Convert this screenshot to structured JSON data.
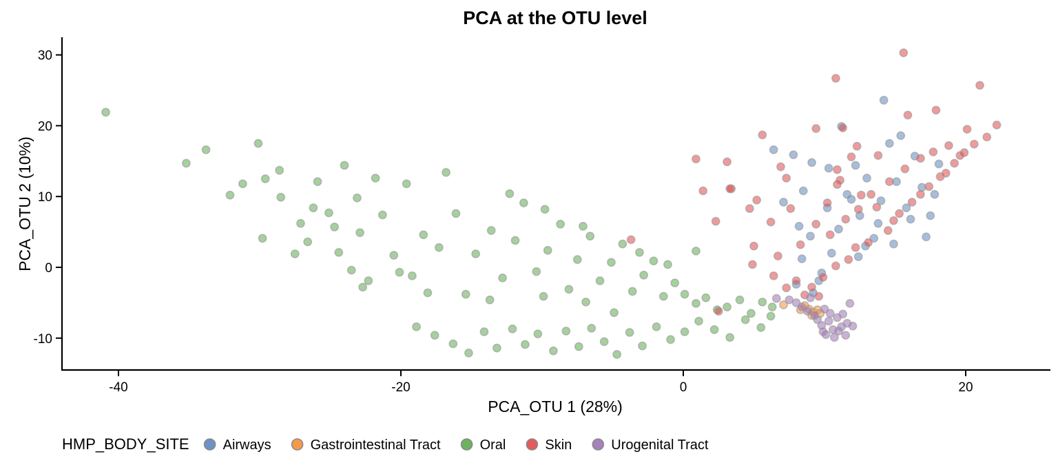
{
  "chart_data": {
    "type": "scatter",
    "title": "PCA at the OTU level",
    "xlabel": "PCA_OTU 1 (28%)",
    "ylabel": "PCA_OTU 2 (10%)",
    "xlim": [
      -44,
      26
    ],
    "ylim": [
      -14.5,
      32.5
    ],
    "xticks": [
      -40,
      -20,
      0,
      20
    ],
    "yticks": [
      -10,
      0,
      10,
      20,
      30
    ],
    "xtick_labels": [
      "-40",
      "-20",
      "0",
      "20"
    ],
    "ytick_labels": [
      "-10",
      "0",
      "10",
      "20",
      "30"
    ],
    "grid": false,
    "legend_position": "bottom",
    "legend_title": "HMP_BODY_SITE",
    "series": [
      {
        "name": "Airways",
        "color": "#5E86C0",
        "points": [
          [
            6.4,
            16.6
          ],
          [
            7.8,
            15.9
          ],
          [
            9.1,
            14.8
          ],
          [
            8.5,
            10.8
          ],
          [
            7.1,
            9.2
          ],
          [
            8.2,
            5.8
          ],
          [
            9.0,
            4.4
          ],
          [
            9.8,
            -0.8
          ],
          [
            8.4,
            1.2
          ],
          [
            8.0,
            -2.4
          ],
          [
            9.2,
            -3.6
          ],
          [
            10.3,
            14.0
          ],
          [
            11.2,
            19.9
          ],
          [
            11.9,
            9.6
          ],
          [
            12.5,
            7.3
          ],
          [
            13.0,
            12.6
          ],
          [
            13.5,
            4.1
          ],
          [
            14.2,
            23.6
          ],
          [
            14.6,
            17.5
          ],
          [
            15.4,
            18.6
          ],
          [
            15.8,
            8.4
          ],
          [
            16.4,
            15.7
          ],
          [
            16.9,
            11.3
          ],
          [
            17.2,
            4.3
          ],
          [
            17.8,
            10.3
          ],
          [
            18.1,
            14.6
          ],
          [
            12.4,
            1.5
          ],
          [
            12.9,
            3.0
          ],
          [
            11.0,
            5.4
          ],
          [
            10.5,
            2.0
          ],
          [
            13.8,
            6.2
          ],
          [
            14.9,
            3.3
          ],
          [
            16.1,
            6.8
          ],
          [
            15.1,
            12.1
          ],
          [
            10.2,
            8.4
          ],
          [
            12.2,
            14.4
          ],
          [
            9.6,
            -1.9
          ],
          [
            11.6,
            10.3
          ],
          [
            14.0,
            9.4
          ],
          [
            17.5,
            7.3
          ]
        ]
      },
      {
        "name": "Gastrointestinal Tract",
        "color": "#F58E3A",
        "points": [
          [
            8.9,
            -5.9
          ],
          [
            9.2,
            -6.3
          ],
          [
            9.5,
            -6.0
          ],
          [
            8.6,
            -5.4
          ],
          [
            9.1,
            -6.8
          ],
          [
            7.1,
            -5.3
          ],
          [
            9.7,
            -6.5
          ],
          [
            8.3,
            -6.0
          ]
        ]
      },
      {
        "name": "Oral",
        "color": "#5DAA4F",
        "points": [
          [
            -40.9,
            21.9
          ],
          [
            -35.2,
            14.7
          ],
          [
            -33.8,
            16.6
          ],
          [
            -30.1,
            17.5
          ],
          [
            -32.1,
            10.2
          ],
          [
            -31.2,
            11.8
          ],
          [
            -29.6,
            12.5
          ],
          [
            -29.8,
            4.1
          ],
          [
            -28.6,
            13.7
          ],
          [
            -27.5,
            1.9
          ],
          [
            -25.9,
            12.1
          ],
          [
            -24.0,
            14.4
          ],
          [
            -23.5,
            -0.4
          ],
          [
            -22.7,
            -2.8
          ],
          [
            -26.2,
            8.4
          ],
          [
            -28.5,
            9.9
          ],
          [
            -27.1,
            6.2
          ],
          [
            -24.7,
            5.7
          ],
          [
            -23.1,
            9.8
          ],
          [
            -21.3,
            7.4
          ],
          [
            -20.5,
            1.7
          ],
          [
            -19.2,
            -1.2
          ],
          [
            -18.4,
            4.6
          ],
          [
            -17.3,
            2.8
          ],
          [
            -16.1,
            7.6
          ],
          [
            -15.4,
            -3.8
          ],
          [
            -14.7,
            1.9
          ],
          [
            -13.6,
            5.2
          ],
          [
            -12.8,
            -1.5
          ],
          [
            -11.9,
            3.8
          ],
          [
            -11.3,
            9.1
          ],
          [
            -10.4,
            -0.6
          ],
          [
            -9.6,
            2.4
          ],
          [
            -8.7,
            6.1
          ],
          [
            -8.1,
            -3.1
          ],
          [
            -7.5,
            1.1
          ],
          [
            -6.6,
            4.4
          ],
          [
            -5.9,
            -1.9
          ],
          [
            -5.1,
            0.7
          ],
          [
            -4.3,
            3.3
          ],
          [
            -3.6,
            -3.4
          ],
          [
            -2.8,
            -1.1
          ],
          [
            -2.1,
            0.9
          ],
          [
            -1.4,
            -4.1
          ],
          [
            -0.6,
            -2.2
          ],
          [
            0.1,
            -3.8
          ],
          [
            0.9,
            -5.1
          ],
          [
            1.6,
            -4.3
          ],
          [
            2.4,
            -6.0
          ],
          [
            3.1,
            -5.6
          ],
          [
            4.0,
            -4.6
          ],
          [
            4.8,
            -6.5
          ],
          [
            5.6,
            -4.9
          ],
          [
            6.3,
            -5.6
          ],
          [
            -18.9,
            -8.4
          ],
          [
            -17.6,
            -9.6
          ],
          [
            -16.3,
            -10.8
          ],
          [
            -15.2,
            -12.1
          ],
          [
            -14.1,
            -9.1
          ],
          [
            -13.2,
            -11.4
          ],
          [
            -12.1,
            -8.7
          ],
          [
            -11.2,
            -10.9
          ],
          [
            -10.3,
            -9.4
          ],
          [
            -9.2,
            -11.8
          ],
          [
            -8.3,
            -9.0
          ],
          [
            -7.4,
            -11.2
          ],
          [
            -6.5,
            -8.6
          ],
          [
            -5.6,
            -10.5
          ],
          [
            -4.7,
            -12.3
          ],
          [
            -3.8,
            -9.2
          ],
          [
            -2.9,
            -11.1
          ],
          [
            -1.9,
            -8.4
          ],
          [
            -0.9,
            -10.2
          ],
          [
            0.1,
            -9.1
          ],
          [
            1.1,
            -7.6
          ],
          [
            2.2,
            -8.8
          ],
          [
            3.3,
            -9.9
          ],
          [
            4.4,
            -7.4
          ],
          [
            5.5,
            -8.5
          ],
          [
            6.2,
            -6.9
          ],
          [
            -16.8,
            13.4
          ],
          [
            -19.6,
            11.8
          ],
          [
            -21.8,
            12.6
          ],
          [
            -25.1,
            7.7
          ],
          [
            -22.9,
            4.9
          ],
          [
            -20.1,
            -0.7
          ],
          [
            -18.1,
            -3.6
          ],
          [
            -13.7,
            -4.6
          ],
          [
            -9.9,
            -4.1
          ],
          [
            -6.9,
            -4.9
          ],
          [
            -4.9,
            -6.4
          ],
          [
            -12.3,
            10.4
          ],
          [
            -9.8,
            8.2
          ],
          [
            -7.1,
            5.8
          ],
          [
            -3.1,
            2.1
          ],
          [
            -1.1,
            0.4
          ],
          [
            0.9,
            2.3
          ],
          [
            -26.6,
            3.6
          ],
          [
            -24.4,
            2.1
          ],
          [
            -22.3,
            -1.9
          ]
        ]
      },
      {
        "name": "Skin",
        "color": "#E0484B",
        "points": [
          [
            15.6,
            30.3
          ],
          [
            10.8,
            26.7
          ],
          [
            21.0,
            25.7
          ],
          [
            17.9,
            22.2
          ],
          [
            15.9,
            21.5
          ],
          [
            11.3,
            19.7
          ],
          [
            9.4,
            19.6
          ],
          [
            20.1,
            19.5
          ],
          [
            22.2,
            20.1
          ],
          [
            21.5,
            18.4
          ],
          [
            5.6,
            18.7
          ],
          [
            12.3,
            17.1
          ],
          [
            13.8,
            15.8
          ],
          [
            0.9,
            15.3
          ],
          [
            3.1,
            14.9
          ],
          [
            6.9,
            14.2
          ],
          [
            10.9,
            13.8
          ],
          [
            11.9,
            15.6
          ],
          [
            7.3,
            12.6
          ],
          [
            3.4,
            11.1
          ],
          [
            3.3,
            11.1
          ],
          [
            1.4,
            10.8
          ],
          [
            5.2,
            9.5
          ],
          [
            4.7,
            8.3
          ],
          [
            7.6,
            8.3
          ],
          [
            2.3,
            6.5
          ],
          [
            6.2,
            6.4
          ],
          [
            -3.7,
            3.9
          ],
          [
            5.0,
            3.0
          ],
          [
            6.7,
            1.6
          ],
          [
            4.9,
            0.4
          ],
          [
            6.4,
            -1.2
          ],
          [
            8.0,
            -1.9
          ],
          [
            7.3,
            -2.9
          ],
          [
            9.6,
            -4.1
          ],
          [
            2.5,
            -6.2
          ],
          [
            10.9,
            11.7
          ],
          [
            12.6,
            10.2
          ],
          [
            13.7,
            8.5
          ],
          [
            14.9,
            6.6
          ],
          [
            16.2,
            9.2
          ],
          [
            17.4,
            11.4
          ],
          [
            18.2,
            12.8
          ],
          [
            19.2,
            14.7
          ],
          [
            19.9,
            16.2
          ],
          [
            20.6,
            17.4
          ],
          [
            13.1,
            3.5
          ],
          [
            14.5,
            5.2
          ],
          [
            15.3,
            7.6
          ],
          [
            16.8,
            10.3
          ],
          [
            18.6,
            13.3
          ],
          [
            19.6,
            15.8
          ],
          [
            11.7,
            1.1
          ],
          [
            12.2,
            2.8
          ],
          [
            10.8,
            0.2
          ],
          [
            9.9,
            -1.4
          ],
          [
            9.1,
            -2.8
          ],
          [
            8.6,
            -3.9
          ],
          [
            10.4,
            4.6
          ],
          [
            11.5,
            6.8
          ],
          [
            12.4,
            8.2
          ],
          [
            13.3,
            10.3
          ],
          [
            14.6,
            12.1
          ],
          [
            15.7,
            13.9
          ],
          [
            16.8,
            15.4
          ],
          [
            17.7,
            16.3
          ],
          [
            18.8,
            17.2
          ],
          [
            8.3,
            3.2
          ],
          [
            9.4,
            6.1
          ],
          [
            10.2,
            9.1
          ],
          [
            11.1,
            12.3
          ]
        ]
      },
      {
        "name": "Urogenital Tract",
        "color": "#9C73B5",
        "points": [
          [
            10.1,
            -9.5
          ],
          [
            10.6,
            -8.8
          ],
          [
            11.2,
            -8.4
          ],
          [
            10.3,
            -7.6
          ],
          [
            11.0,
            -9.0
          ],
          [
            9.8,
            -8.2
          ],
          [
            11.6,
            -7.9
          ],
          [
            10.9,
            -7.1
          ],
          [
            9.5,
            -7.4
          ],
          [
            8.4,
            -5.6
          ],
          [
            7.5,
            -4.6
          ],
          [
            11.8,
            -5.1
          ],
          [
            10.0,
            -5.9
          ],
          [
            9.0,
            -4.3
          ],
          [
            8.0,
            -5.0
          ],
          [
            10.7,
            -9.9
          ],
          [
            11.3,
            -6.6
          ],
          [
            9.3,
            -6.8
          ],
          [
            8.8,
            -6.2
          ],
          [
            10.4,
            -6.5
          ],
          [
            6.6,
            -4.4
          ],
          [
            12.0,
            -8.3
          ],
          [
            11.5,
            -9.6
          ],
          [
            9.9,
            -9.1
          ]
        ]
      }
    ]
  }
}
